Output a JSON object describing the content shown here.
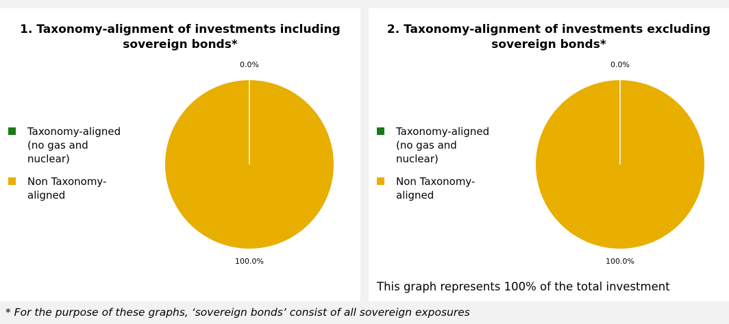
{
  "chart_data": [
    {
      "type": "pie",
      "title": "1. Taxonomy-alignment of investments including sovereign bonds*",
      "categories": [
        "Taxonomy-aligned (no gas and nuclear)",
        "Non Taxonomy-aligned"
      ],
      "values": [
        0.0,
        100.0
      ],
      "data_labels": [
        "0.0%",
        "100.0%"
      ],
      "colors": [
        "#1a7a1a",
        "#e8ae00"
      ],
      "legend_position": "left",
      "legend": [
        {
          "label_lines": [
            "Taxonomy-aligned",
            "(no gas and",
            "nuclear)"
          ],
          "color": "#1a7a1a"
        },
        {
          "label_lines": [
            "Non Taxonomy-",
            "aligned"
          ],
          "color": "#e8ae00"
        }
      ]
    },
    {
      "type": "pie",
      "title": "2. Taxonomy-alignment of investments excluding sovereign bonds*",
      "categories": [
        "Taxonomy-aligned (no gas and nuclear)",
        "Non Taxonomy-aligned"
      ],
      "values": [
        0.0,
        100.0
      ],
      "data_labels": [
        "0.0%",
        "100.0%"
      ],
      "colors": [
        "#1a7a1a",
        "#e8ae00"
      ],
      "legend_position": "left",
      "legend": [
        {
          "label_lines": [
            "Taxonomy-aligned",
            "(no gas and",
            "nuclear)"
          ],
          "color": "#1a7a1a"
        },
        {
          "label_lines": [
            "Non Taxonomy-",
            "aligned"
          ],
          "color": "#e8ae00"
        }
      ]
    }
  ],
  "coverage_note": "This graph represents 100% of the total investment",
  "footnote": "* For the purpose of these graphs, ‘sovereign bonds’ consist of all sovereign exposures"
}
